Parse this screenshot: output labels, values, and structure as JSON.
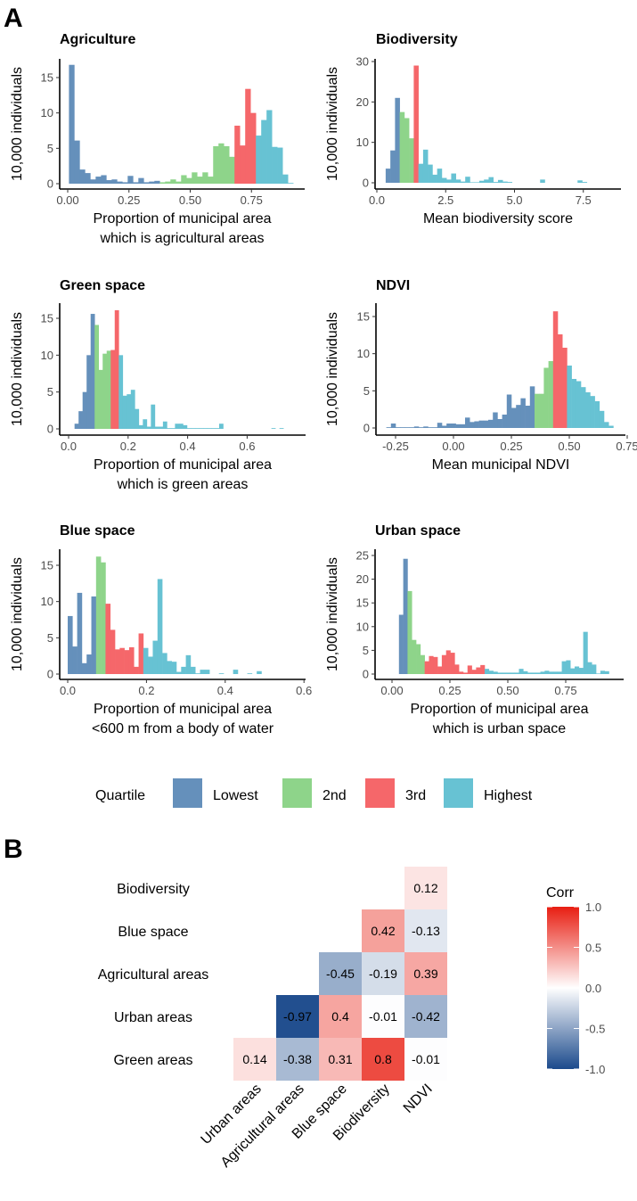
{
  "panel_labels": {
    "a": "A",
    "b": "B"
  },
  "colors": {
    "Lowest": "#6590bb",
    "2nd": "#8ed48a",
    "3rd": "#f5676a",
    "Highest": "#67c2d3"
  },
  "legend": {
    "title": "Quartile",
    "items": [
      "Lowest",
      "2nd",
      "3rd",
      "Highest"
    ]
  },
  "chart_data": [
    {
      "type": "bar",
      "title": "Agriculture",
      "ylabel": "10,000 individuals",
      "xlabel": [
        "Proportion of municipal area",
        "which is agricultural areas"
      ],
      "xticks": [
        "0.00",
        "0.25",
        "0.50",
        "0.75"
      ],
      "xtick_values": [
        0,
        0.25,
        0.5,
        0.75
      ],
      "yticks": [
        "0",
        "5",
        "10",
        "15"
      ],
      "ytick_values": [
        0,
        5,
        10,
        15
      ],
      "bin_start": 0.005,
      "bin_width": 0.0218,
      "quartile_bin_counts": [
        17,
        14,
        4,
        7
      ],
      "values": [
        16.8,
        6.1,
        2.0,
        1.5,
        0.6,
        1.0,
        1.2,
        0.5,
        0.6,
        0.3,
        0.2,
        1.1,
        0.2,
        0.8,
        0.2,
        0.3,
        0.4,
        0.2,
        0.3,
        0.6,
        0.3,
        1.2,
        0.8,
        1.6,
        1.0,
        1.6,
        1.0,
        5.3,
        5.7,
        5.3,
        3.8,
        8.2,
        5.4,
        13.4,
        10.0,
        6.8,
        9.0,
        10.4,
        5.2,
        5.1,
        1.3,
        0.1
      ]
    },
    {
      "type": "bar",
      "title": "Biodiversity",
      "ylabel": "10,000 individuals",
      "xlabel": [
        "Mean biodiversity score"
      ],
      "xticks": [
        "0.0",
        "2.5",
        "5.0",
        "7.5"
      ],
      "xtick_values": [
        0,
        2.5,
        5,
        7.5
      ],
      "yticks": [
        "0",
        "10",
        "20",
        "30"
      ],
      "ytick_values": [
        0,
        10,
        20,
        30
      ],
      "bin_start": 0.32,
      "bin_width": 0.17,
      "quartile_bin_counts": [
        3,
        3,
        1,
        36
      ],
      "values": [
        3.5,
        8,
        21,
        17.5,
        16,
        11,
        29,
        4.7,
        8.2,
        4.5,
        2.0,
        3.5,
        1.2,
        0.8,
        2.3,
        0.8,
        0.3,
        1.5,
        0.1,
        0.1,
        0.5,
        0.8,
        1.4,
        0.2,
        0.7,
        0.3,
        0.2,
        0,
        0,
        0,
        0,
        0,
        0,
        0.8,
        0,
        0,
        0,
        0,
        0,
        0,
        0,
        0.6,
        0.2
      ]
    },
    {
      "type": "bar",
      "title": "Green space",
      "ylabel": "10,000 individuals",
      "xlabel": [
        "Proportion of municipal area",
        "which is green areas"
      ],
      "xticks": [
        "0.0",
        "0.2",
        "0.4",
        "0.6"
      ],
      "xtick_values": [
        0,
        0.2,
        0.4,
        0.6
      ],
      "yticks": [
        "0",
        "5",
        "10",
        "15"
      ],
      "ytick_values": [
        0,
        5,
        10,
        15
      ],
      "bin_start": 0.02,
      "bin_width": 0.0135,
      "quartile_bin_counts": [
        5,
        4,
        2,
        41
      ],
      "values": [
        0.7,
        2.4,
        5,
        10,
        15.6,
        14.1,
        8,
        10.2,
        10.6,
        10.7,
        16.1,
        10,
        4.5,
        4.7,
        5.3,
        2.7,
        0.5,
        1.3,
        0.3,
        3.3,
        0.3,
        0.3,
        1.0,
        0.1,
        0.1,
        0.7,
        0.7,
        0.5,
        0.1,
        0.1,
        0.1,
        0.1,
        0.1,
        0.1,
        0.1,
        0.1,
        0.7,
        0,
        0,
        0,
        0,
        0,
        0,
        0,
        0,
        0,
        0,
        0,
        0,
        0.1,
        0,
        0.1
      ]
    },
    {
      "type": "bar",
      "title": "NDVI",
      "ylabel": "10,000 individuals",
      "xlabel": [
        "Mean municipal NDVI"
      ],
      "xticks": [
        "-0.25",
        "0.00",
        "0.25",
        "0.50",
        "0.75"
      ],
      "xtick_values": [
        -0.25,
        0,
        0.25,
        0.5,
        0.75
      ],
      "yticks": [
        "0",
        "5",
        "10",
        "15"
      ],
      "ytick_values": [
        0,
        5,
        10,
        15
      ],
      "bin_start": -0.29,
      "bin_width": 0.02,
      "quartile_bin_counts": [
        32,
        4,
        3,
        10
      ],
      "values": [
        0.1,
        0.6,
        0.1,
        0.1,
        0.1,
        0.1,
        0.2,
        0.1,
        0.2,
        0.1,
        0.1,
        0.7,
        0.3,
        0.6,
        0.6,
        0.5,
        0.5,
        1.4,
        0.8,
        0.9,
        1.0,
        1.0,
        1.1,
        2.1,
        1.2,
        1.8,
        4.5,
        2.7,
        3.1,
        4.0,
        3.0,
        5.6,
        4.6,
        4.6,
        8.1,
        9.0,
        15.7,
        12.6,
        10.8,
        8.4,
        6.6,
        6.3,
        5.5,
        4.8,
        4.3,
        3.6,
        2.3,
        0.8,
        0.3
      ]
    },
    {
      "type": "bar",
      "title": "Blue space",
      "ylabel": "10,000 individuals",
      "xlabel": [
        "Proportion of municipal area",
        "<600 m from a body of water"
      ],
      "xticks": [
        "0.0",
        "0.2",
        "0.4",
        "0.6"
      ],
      "xtick_values": [
        0,
        0.2,
        0.4,
        0.6
      ],
      "yticks": [
        "0",
        "5",
        "10",
        "15"
      ],
      "ytick_values": [
        0,
        5,
        10,
        15
      ],
      "bin_start": 0.0,
      "bin_width": 0.012,
      "quartile_bin_counts": [
        6,
        2,
        8,
        25
      ],
      "values": [
        8,
        3.8,
        11.2,
        1.5,
        2.7,
        10.7,
        16.2,
        15.4,
        9.7,
        6.1,
        3.4,
        3.6,
        3.3,
        3.7,
        1.0,
        5.6,
        3.6,
        2.4,
        4.6,
        13.1,
        2.9,
        1.8,
        1.7,
        0.3,
        1.0,
        2.6,
        1.0,
        0.1,
        0.6,
        0.6,
        0,
        0,
        0.1,
        0,
        0,
        0.6,
        0,
        0,
        0.1,
        0,
        0.4
      ]
    },
    {
      "type": "bar",
      "title": "Urban space",
      "ylabel": "10,000 individuals",
      "xlabel": [
        "Proportion of municipal area",
        "which is urban space"
      ],
      "xticks": [
        "0.00",
        "0.25",
        "0.50",
        "0.75"
      ],
      "xtick_values": [
        0,
        0.25,
        0.5,
        0.75
      ],
      "yticks": [
        "0",
        "5",
        "10",
        "15",
        "20",
        "25"
      ],
      "ytick_values": [
        0,
        5,
        10,
        15,
        20,
        25
      ],
      "bin_start": 0.03,
      "bin_width": 0.0185,
      "quartile_bin_counts": [
        2,
        4,
        14,
        29
      ],
      "values": [
        12.5,
        24.3,
        17.5,
        7.2,
        6.3,
        4.0,
        2.7,
        3.8,
        3.6,
        1.6,
        4.0,
        5.0,
        4.5,
        2.0,
        0.5,
        0.3,
        1.8,
        0.9,
        1.4,
        1.9,
        1.1,
        0.7,
        0.5,
        0.3,
        0.3,
        0.3,
        0.3,
        0.3,
        1.1,
        0.6,
        0.3,
        0.3,
        0.3,
        0.5,
        0.7,
        0.5,
        0.5,
        0.5,
        2.7,
        2.9,
        1.2,
        1.6,
        1.3,
        8.9,
        2.5,
        2.0,
        0.1,
        0.7,
        0.6
      ]
    },
    {
      "type": "heatmap",
      "rows": [
        "Biodiversity",
        "Blue space",
        "Agricultural areas",
        "Urban areas",
        "Green areas"
      ],
      "columns": [
        "Urban areas",
        "Agricultural areas",
        "Blue space",
        "Biodiversity",
        "NDVI"
      ],
      "cells": [
        {
          "row": "Biodiversity",
          "col": "NDVI",
          "value": 0.12,
          "label": "0.12"
        },
        {
          "row": "Blue space",
          "col": "Biodiversity",
          "value": 0.42,
          "label": "0.42"
        },
        {
          "row": "Blue space",
          "col": "NDVI",
          "value": -0.13,
          "label": "-0.13"
        },
        {
          "row": "Agricultural areas",
          "col": "Blue space",
          "value": -0.45,
          "label": "-0.45"
        },
        {
          "row": "Agricultural areas",
          "col": "Biodiversity",
          "value": -0.19,
          "label": "-0.19"
        },
        {
          "row": "Agricultural areas",
          "col": "NDVI",
          "value": 0.39,
          "label": "0.39"
        },
        {
          "row": "Urban areas",
          "col": "Agricultural areas",
          "value": -0.97,
          "label": "-0.97"
        },
        {
          "row": "Urban areas",
          "col": "Blue space",
          "value": 0.4,
          "label": "0.4"
        },
        {
          "row": "Urban areas",
          "col": "Biodiversity",
          "value": -0.01,
          "label": "-0.01"
        },
        {
          "row": "Urban areas",
          "col": "NDVI",
          "value": -0.42,
          "label": "-0.42"
        },
        {
          "row": "Green areas",
          "col": "Urban areas",
          "value": 0.14,
          "label": "0.14"
        },
        {
          "row": "Green areas",
          "col": "Agricultural areas",
          "value": -0.38,
          "label": "-0.38"
        },
        {
          "row": "Green areas",
          "col": "Blue space",
          "value": 0.31,
          "label": "0.31"
        },
        {
          "row": "Green areas",
          "col": "Biodiversity",
          "value": 0.8,
          "label": "0.8"
        },
        {
          "row": "Green areas",
          "col": "NDVI",
          "value": -0.01,
          "label": "-0.01"
        }
      ],
      "legend_title": "Corr",
      "legend_ticks": [
        "1.0",
        "0.5",
        "0.0",
        "-0.5",
        "-1.0"
      ],
      "legend_tick_values": [
        1,
        0.5,
        0,
        -0.5,
        -1
      ],
      "scale": {
        "low": "#1b4a8c",
        "mid": "#ffffff",
        "high": "#e81e12"
      },
      "range": [
        -1,
        1
      ]
    }
  ]
}
